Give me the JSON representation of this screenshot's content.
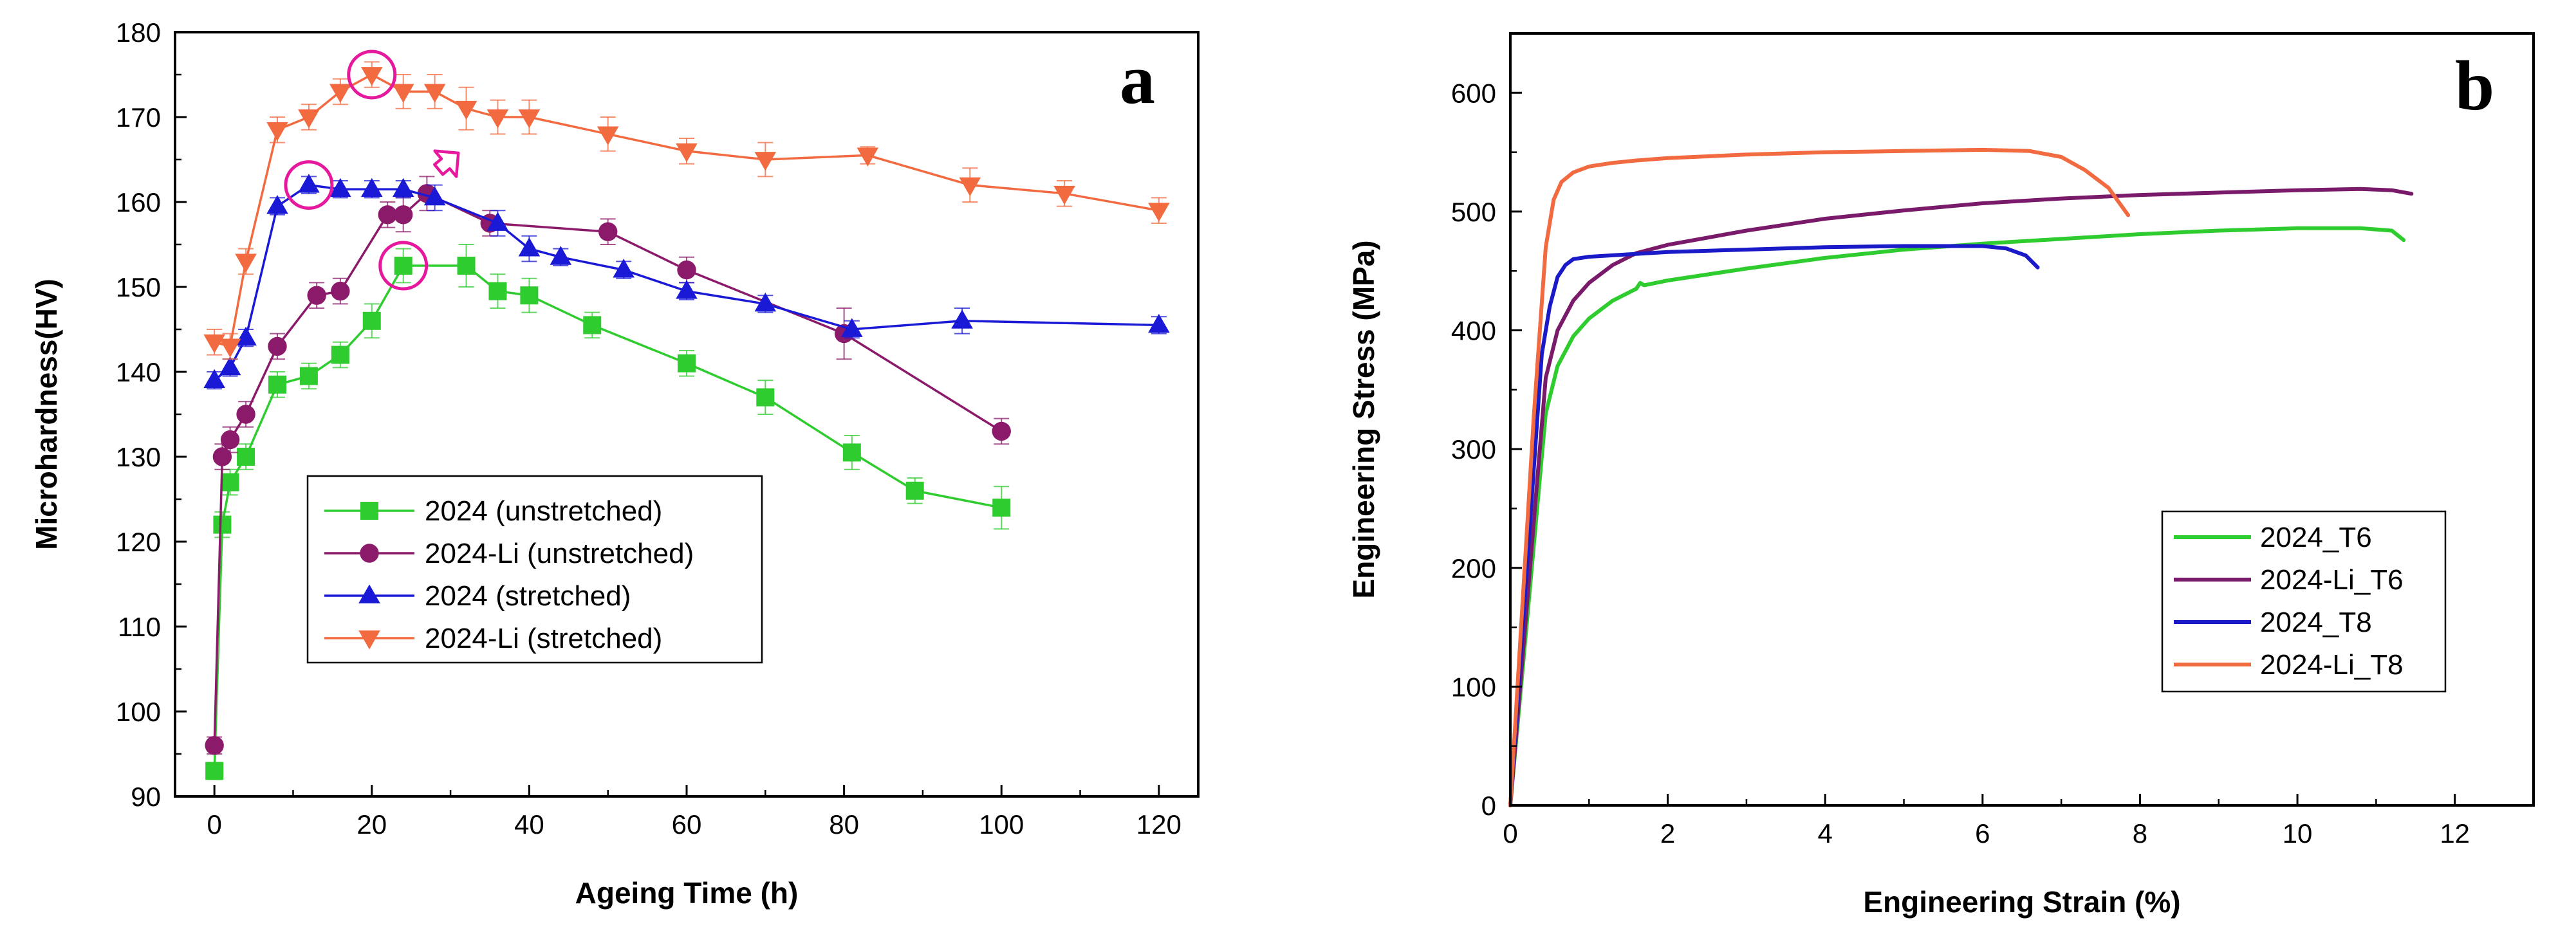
{
  "chart_data": [
    {
      "type": "line",
      "panel": "a",
      "xlabel": "Ageing Time (h)",
      "ylabel": "Microhardness(HV)",
      "xlim": [
        -5,
        125
      ],
      "ylim": [
        90,
        180
      ],
      "xticks": [
        0,
        20,
        40,
        60,
        80,
        100,
        120
      ],
      "yticks": [
        90,
        100,
        110,
        120,
        130,
        140,
        150,
        160,
        170,
        180
      ],
      "legend_position": "lower-left",
      "series": [
        {
          "name": "2024 (unstretched)",
          "color": "#2ecc2e",
          "marker": "square",
          "x": [
            0,
            1,
            2,
            4,
            8,
            12,
            16,
            20,
            24,
            32,
            36,
            40,
            48,
            60,
            70,
            81,
            89,
            100
          ],
          "y": [
            93,
            122,
            127,
            130,
            138.5,
            139.5,
            142,
            146,
            152.5,
            152.5,
            149.5,
            149,
            145.5,
            141,
            137,
            130.5,
            126,
            124
          ],
          "err": [
            1,
            1.5,
            1.5,
            1.5,
            1.5,
            1.5,
            1.5,
            2,
            2,
            2.5,
            2,
            2,
            1.5,
            1.5,
            2,
            2,
            1.5,
            2.5
          ]
        },
        {
          "name": "2024-Li (unstretched)",
          "color": "#8b1a6b",
          "marker": "circle",
          "x": [
            0,
            1,
            2,
            4,
            8,
            13,
            16,
            22,
            24,
            27,
            35,
            50,
            60,
            80,
            100
          ],
          "y": [
            96,
            130,
            132,
            135,
            143,
            149,
            149.5,
            158.5,
            158.5,
            161,
            157.5,
            156.5,
            152,
            144.5,
            133
          ],
          "err": [
            1,
            1.5,
            1.5,
            1.5,
            1.5,
            1.5,
            1.5,
            1.5,
            2,
            2,
            1.5,
            1.5,
            1.5,
            3,
            1.5
          ]
        },
        {
          "name": "2024 (stretched)",
          "color": "#1a1ad6",
          "marker": "triangle-up",
          "x": [
            0,
            2,
            4,
            8,
            12,
            16,
            20,
            24,
            28,
            36,
            40,
            44,
            52,
            60,
            70,
            81,
            95,
            120
          ],
          "y": [
            139,
            140.5,
            144,
            159.5,
            162,
            161.5,
            161.5,
            161.5,
            160.5,
            157.5,
            154.5,
            153.5,
            152,
            149.5,
            148,
            145,
            146,
            145.5
          ],
          "err": [
            1,
            1,
            1,
            1,
            1,
            1,
            1,
            1,
            1.5,
            1.5,
            1.5,
            1,
            1,
            1,
            1,
            1,
            1.5,
            1
          ]
        },
        {
          "name": "2024-Li (stretched)",
          "color": "#f26a40",
          "marker": "triangle-down",
          "x": [
            0,
            2,
            4,
            8,
            12,
            16,
            20,
            24,
            28,
            32,
            36,
            40,
            50,
            60,
            70,
            83,
            96,
            108,
            120
          ],
          "y": [
            143.5,
            143,
            153,
            168.5,
            170,
            173,
            175,
            173,
            173,
            171,
            170,
            170,
            168,
            166,
            165,
            165.5,
            162,
            161,
            159
          ],
          "err": [
            1.5,
            1.5,
            1.5,
            1.5,
            1.5,
            1.5,
            1.5,
            2,
            2,
            2.5,
            2,
            2,
            2,
            1.5,
            2,
            1,
            2,
            1.5,
            1.5
          ]
        }
      ],
      "annotations": [
        {
          "type": "circle",
          "x": 20,
          "y": 175,
          "color": "#e6199e"
        },
        {
          "type": "circle",
          "x": 12,
          "y": 162,
          "color": "#e6199e"
        },
        {
          "type": "circle",
          "x": 24,
          "y": 152.5,
          "color": "#e6199e"
        },
        {
          "type": "arrow",
          "x": 30,
          "y": 164,
          "color": "#e6199e"
        }
      ]
    },
    {
      "type": "line",
      "panel": "b",
      "xlabel": "Engineering Strain (%)",
      "ylabel": "Engineering Stress (MPa)",
      "xlim": [
        0,
        13
      ],
      "ylim": [
        0,
        650
      ],
      "xticks": [
        0,
        2,
        4,
        6,
        8,
        10,
        12
      ],
      "yticks": [
        0,
        100,
        200,
        300,
        400,
        500,
        600
      ],
      "legend_position": "lower-right",
      "series": [
        {
          "name": "2024_T6",
          "color": "#2ecc2e",
          "x": [
            0,
            0.45,
            0.6,
            0.8,
            1.0,
            1.3,
            1.6,
            1.65,
            1.7,
            2,
            3,
            4,
            5,
            6,
            7,
            8,
            9,
            10,
            10.8,
            11.2,
            11.35
          ],
          "y": [
            0,
            330,
            370,
            395,
            410,
            425,
            435,
            440,
            438,
            442,
            452,
            461,
            468,
            473,
            477,
            481,
            484,
            486,
            486,
            484,
            476
          ]
        },
        {
          "name": "2024-Li_T6",
          "color": "#7a1a6a",
          "x": [
            0,
            0.45,
            0.6,
            0.8,
            1.0,
            1.3,
            1.6,
            2,
            3,
            4,
            5,
            6,
            7,
            8,
            9,
            10,
            10.8,
            11.2,
            11.45
          ],
          "y": [
            0,
            360,
            400,
            425,
            440,
            455,
            465,
            472,
            484,
            494,
            501,
            507,
            511,
            514,
            516,
            518,
            519,
            518,
            515
          ]
        },
        {
          "name": "2024_T8",
          "color": "#1a1ac8",
          "x": [
            0,
            0.4,
            0.5,
            0.6,
            0.7,
            0.8,
            1.0,
            1.5,
            2,
            3,
            4,
            5,
            6,
            6.3,
            6.55,
            6.7
          ],
          "y": [
            0,
            380,
            420,
            445,
            455,
            460,
            462,
            464,
            466,
            468,
            470,
            471,
            471,
            469,
            463,
            453
          ]
        },
        {
          "name": "2024-Li_T8",
          "color": "#f26a40",
          "x": [
            0,
            0.3,
            0.45,
            0.55,
            0.65,
            0.8,
            1.0,
            1.3,
            1.6,
            2,
            3,
            4,
            5,
            6,
            6.6,
            7,
            7.3,
            7.6,
            7.85
          ],
          "y": [
            0,
            330,
            470,
            510,
            525,
            533,
            538,
            541,
            543,
            545,
            548,
            550,
            551,
            552,
            551,
            546,
            535,
            520,
            497
          ]
        }
      ]
    }
  ]
}
